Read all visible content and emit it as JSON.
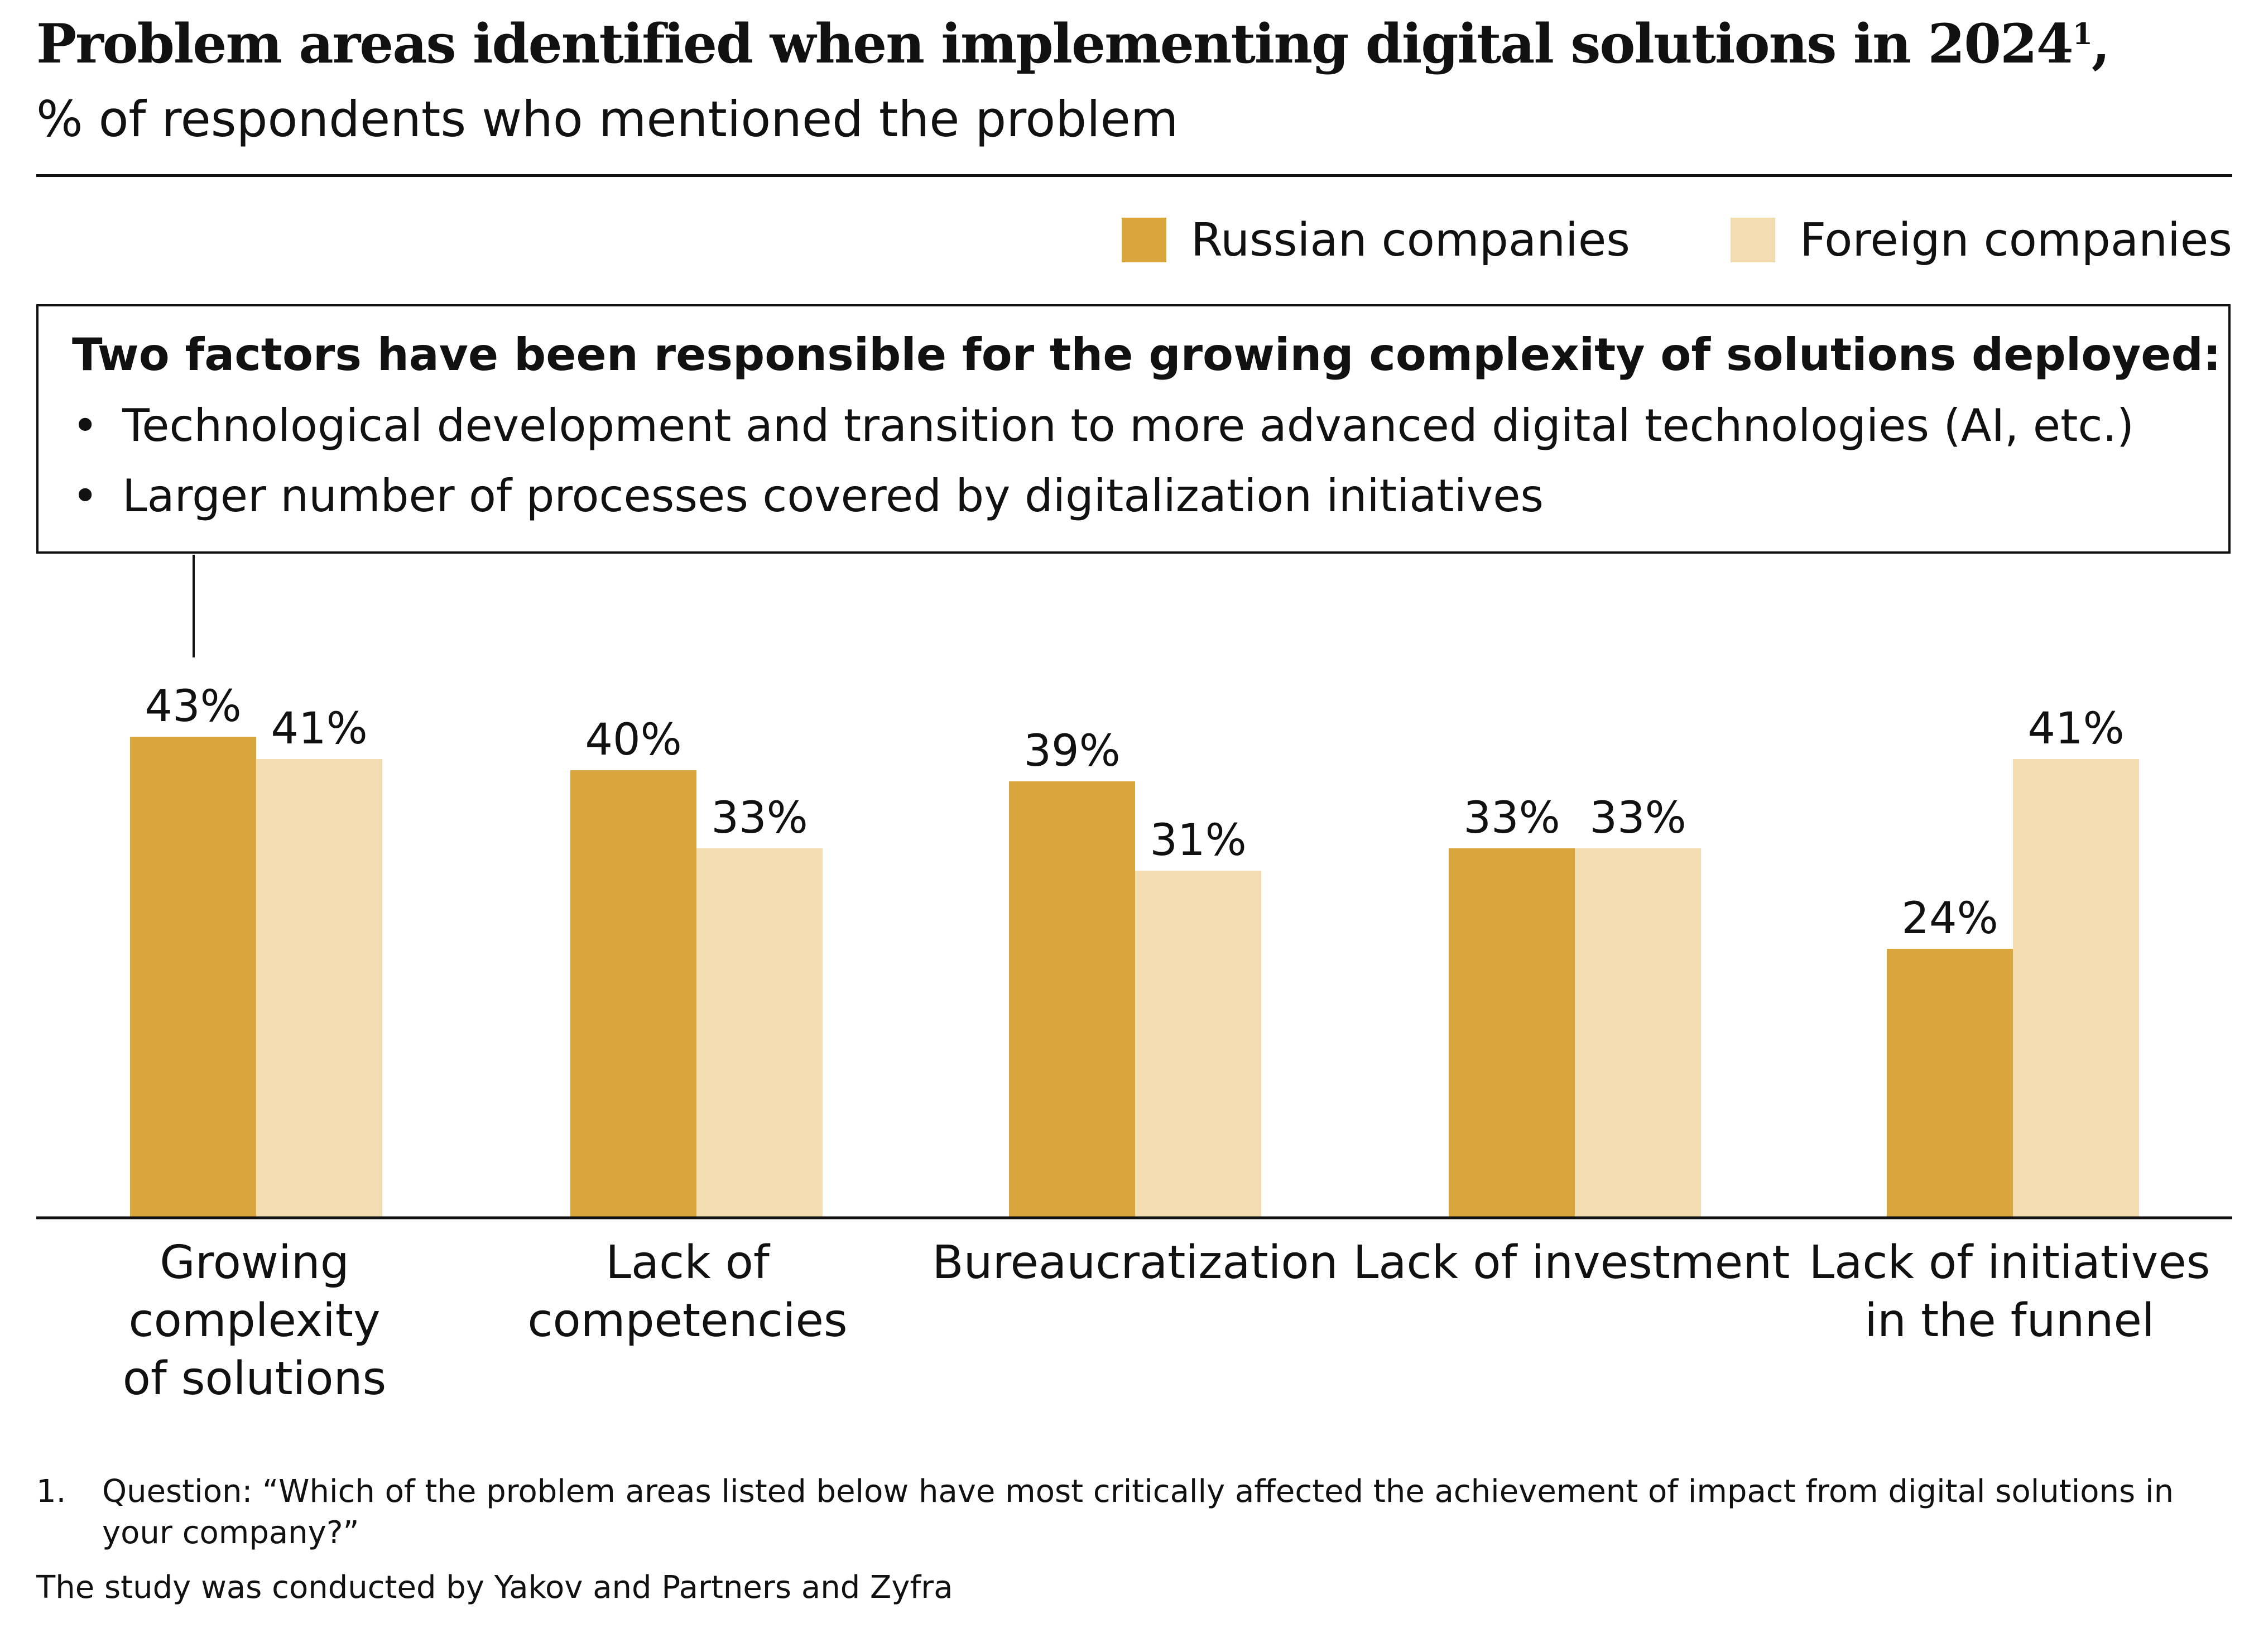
{
  "title": "Problem areas identified when implementing digital solutions in 2024",
  "title_footnote_ref": "1",
  "title_suffix": ",",
  "subtitle": "% of respondents who mentioned the problem",
  "legend": [
    {
      "label": "Russian companies",
      "color": "#D9A63D"
    },
    {
      "label": "Foreign companies",
      "color": "#F3DDB0"
    }
  ],
  "callout": {
    "heading": "Two factors have been responsible for the growing complexity of solutions deployed:",
    "bullets": [
      "Technological development and transition to more advanced digital technologies (AI, etc.)",
      "Larger number of processes covered by digitalization initiatives"
    ],
    "bullet_glyph": "•"
  },
  "chart_data": {
    "type": "bar",
    "categories": [
      [
        "Growing",
        "complexity",
        "of solutions"
      ],
      [
        "Lack of",
        "competencies"
      ],
      [
        "Bureaucratization"
      ],
      [
        "Lack of investment"
      ],
      [
        "Lack of initiatives",
        "in the funnel"
      ]
    ],
    "series": [
      {
        "name": "Russian companies",
        "values": [
          43,
          40,
          39,
          33,
          24
        ],
        "color": "#D9A63D"
      },
      {
        "name": "Foreign companies",
        "values": [
          41,
          33,
          31,
          33,
          41
        ],
        "color": "#F3DDB0"
      }
    ],
    "value_suffix": "%",
    "ylim": [
      0,
      43
    ],
    "grid": false,
    "legend_position": "top-right"
  },
  "footnote": {
    "number": "1.",
    "text": "Question: “Which of the problem areas listed below have most critically affected the achievement of impact from digital solutions in your company?”"
  },
  "source_note": "The study was conducted by Yakov and Partners and Zyfra"
}
